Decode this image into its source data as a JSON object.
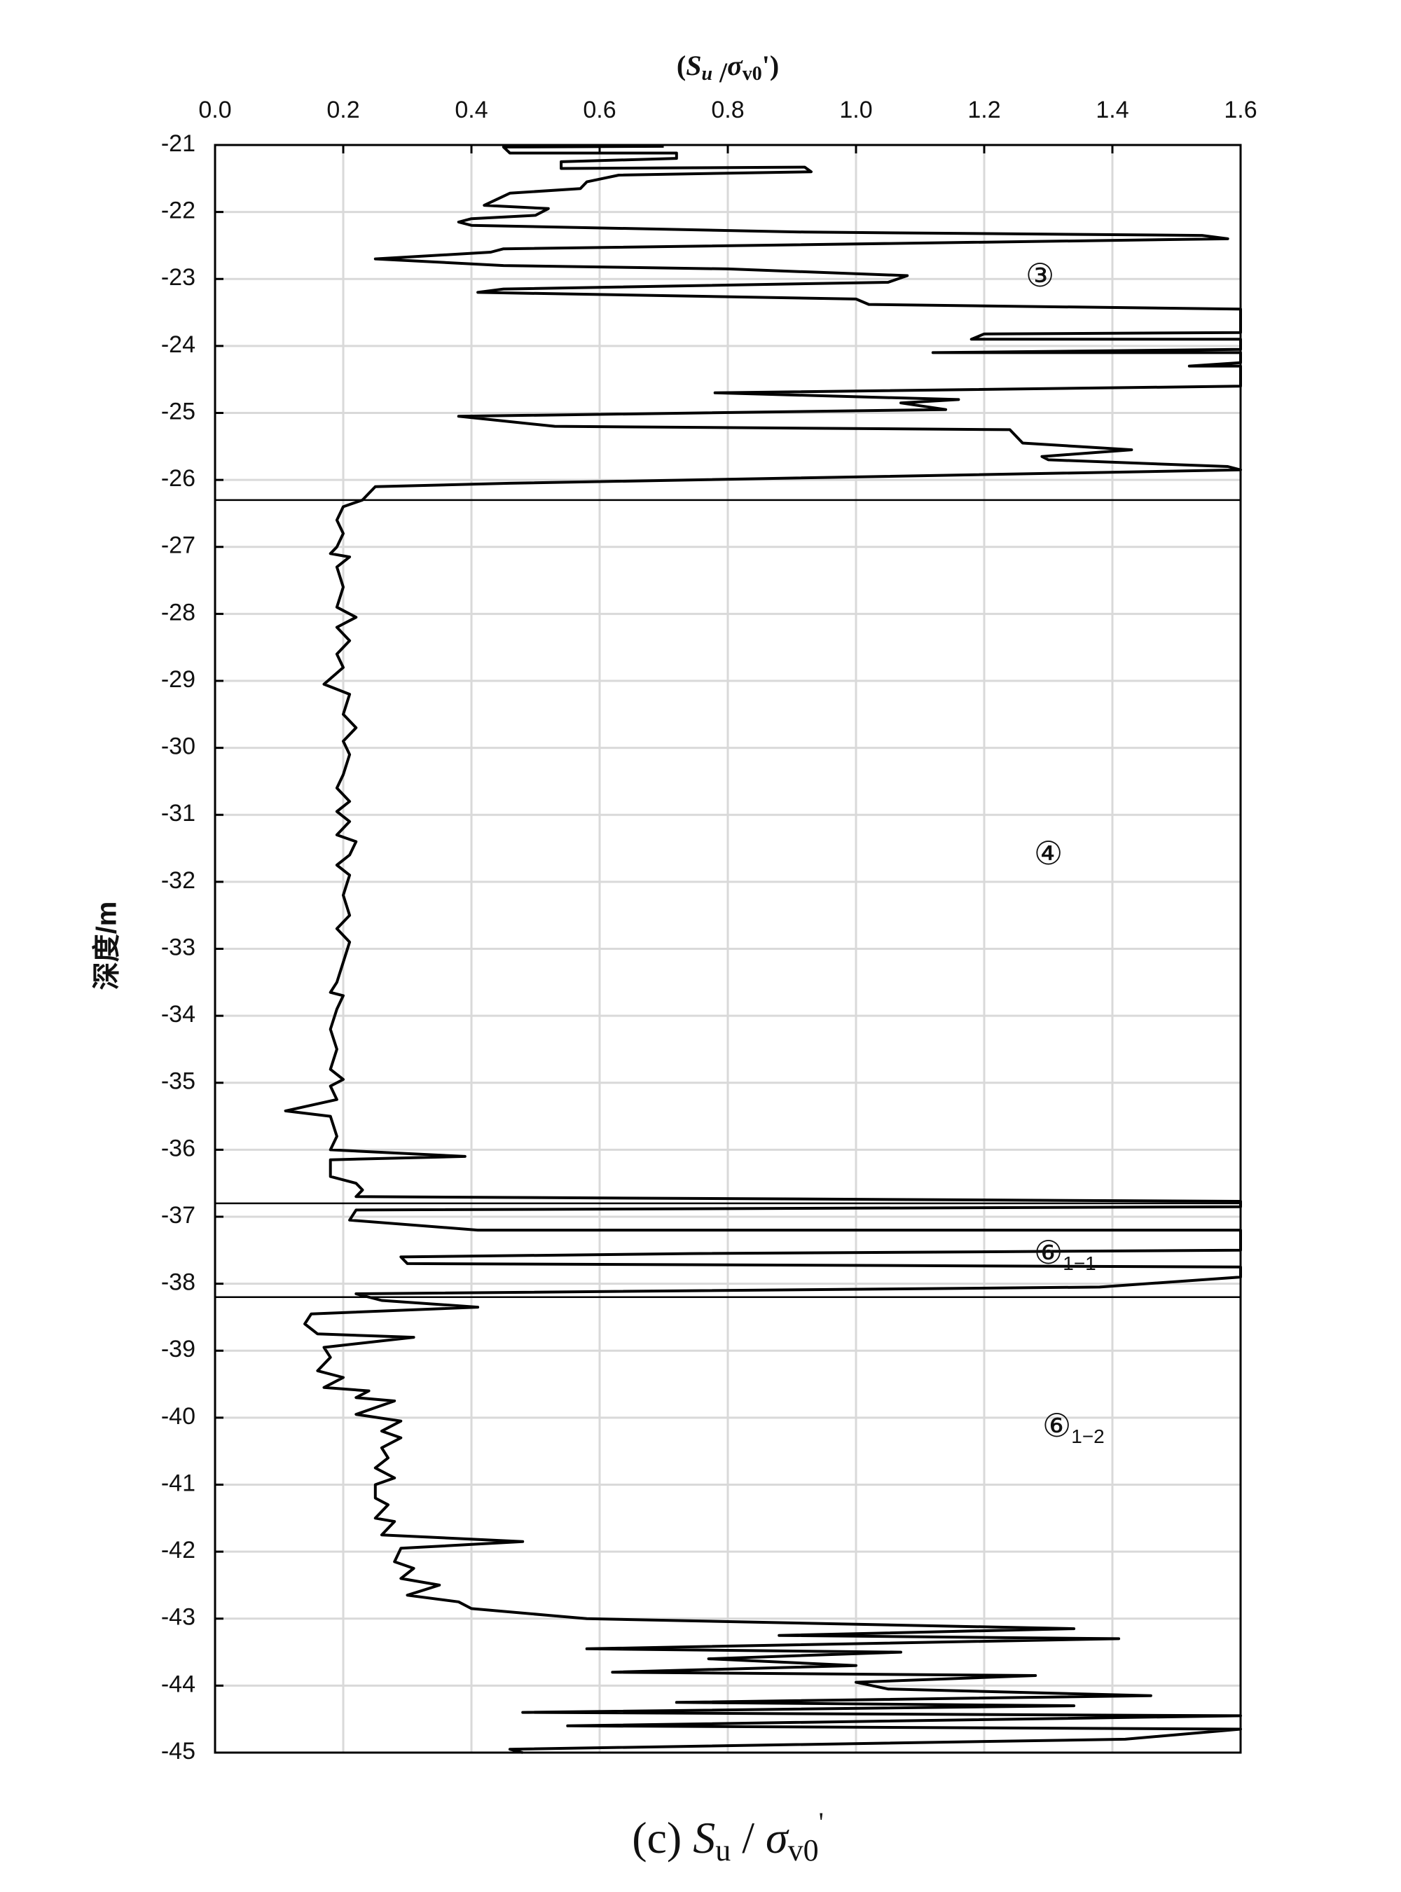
{
  "chart_data": {
    "type": "line",
    "xlabel_parts": [
      "(",
      "S",
      "u",
      " /",
      "σ",
      "v0",
      "')"
    ],
    "ylabel": "深度/m",
    "caption_parts": [
      "(c) ",
      "S",
      "u",
      " / ",
      "σ",
      "v0",
      "'"
    ],
    "xlim": [
      0,
      1.6
    ],
    "ylim": [
      -45,
      -21
    ],
    "xticks": [
      {
        "value": 0,
        "label": "0.0"
      },
      0.2,
      0.4,
      0.6,
      0.8,
      {
        "value": 1,
        "label": "1.0"
      },
      1.2,
      1.4,
      1.6
    ],
    "yticks": [
      -21,
      -22,
      -23,
      -24,
      -25,
      -26,
      -27,
      -28,
      -29,
      -30,
      -31,
      -32,
      -33,
      -34,
      -35,
      -36,
      -37,
      -38,
      -39,
      -40,
      -41,
      -42,
      -43,
      -44,
      -45
    ],
    "grid": true,
    "layer_boundaries": [
      -26.3,
      -36.8,
      -38.2
    ],
    "annotations": [
      {
        "text": "③"
      },
      {
        "text": "④"
      },
      {
        "text": "⑥",
        "sub": "1−1"
      },
      {
        "text": "⑥",
        "sub": "1−2"
      }
    ],
    "series": [
      {
        "color": "#000000",
        "x": [
          0.7,
          0.45,
          0.46,
          0.72,
          0.72,
          0.54,
          0.54,
          0.92,
          0.93,
          0.63,
          0.58,
          0.57,
          0.46,
          0.42,
          0.52,
          0.5,
          0.4,
          0.38,
          0.4,
          0.92,
          1.54,
          1.58,
          0.45,
          0.43,
          0.25,
          0.45,
          0.8,
          1.08,
          1.05,
          0.45,
          0.41,
          1.0,
          1.02,
          1.6,
          1.6,
          1.2,
          1.18,
          1.6,
          1.6,
          1.12,
          1.6,
          1.6,
          1.52,
          1.6,
          1.6,
          0.78,
          1.16,
          1.07,
          1.14,
          0.38,
          0.53,
          1.24,
          1.26,
          1.43,
          1.29,
          1.3,
          1.58,
          1.6,
          0.46,
          0.25,
          0.24,
          0.23,
          0.2,
          0.19,
          0.2,
          0.19,
          0.18,
          0.21,
          0.19,
          0.2,
          0.19,
          0.22,
          0.19,
          0.21,
          0.19,
          0.2,
          0.17,
          0.21,
          0.2,
          0.22,
          0.2,
          0.21,
          0.2,
          0.19,
          0.21,
          0.19,
          0.21,
          0.19,
          0.22,
          0.21,
          0.19,
          0.21,
          0.2,
          0.21,
          0.19,
          0.21,
          0.2,
          0.19,
          0.18,
          0.2,
          0.19,
          0.18,
          0.19,
          0.18,
          0.2,
          0.18,
          0.19,
          0.11,
          0.18,
          0.19,
          0.18,
          0.39,
          0.18,
          0.18,
          0.22,
          0.23,
          0.22,
          1.6,
          1.6,
          0.22,
          0.21,
          0.41,
          1.6,
          1.6,
          0.74,
          0.29,
          0.3,
          1.6,
          1.6,
          1.38,
          0.22,
          0.26,
          0.41,
          0.15,
          0.14,
          0.16,
          0.31,
          0.17,
          0.18,
          0.16,
          0.2,
          0.17,
          0.24,
          0.22,
          0.28,
          0.22,
          0.29,
          0.26,
          0.29,
          0.26,
          0.27,
          0.25,
          0.28,
          0.25,
          0.25,
          0.27,
          0.25,
          0.28,
          0.26,
          0.48,
          0.29,
          0.28,
          0.31,
          0.29,
          0.35,
          0.3,
          0.38,
          0.4,
          0.52,
          0.58,
          1.34,
          0.88,
          1.41,
          0.58,
          1.07,
          0.77,
          1.0,
          0.62,
          1.28,
          1.0,
          1.05,
          1.46,
          0.72,
          1.34,
          0.48,
          1.6,
          0.55,
          1.6,
          1.42,
          0.46,
          0.48
        ],
        "values": [
          -21.02,
          -21.03,
          -21.12,
          -21.12,
          -21.2,
          -21.25,
          -21.35,
          -21.33,
          -21.4,
          -21.45,
          -21.55,
          -21.65,
          -21.72,
          -21.9,
          -21.95,
          -22.05,
          -22.1,
          -22.15,
          -22.2,
          -22.3,
          -22.35,
          -22.4,
          -22.55,
          -22.6,
          -22.7,
          -22.8,
          -22.85,
          -22.95,
          -23.05,
          -23.15,
          -23.2,
          -23.3,
          -23.38,
          -23.45,
          -23.8,
          -23.82,
          -23.9,
          -23.9,
          -24.05,
          -24.1,
          -24.1,
          -24.25,
          -24.3,
          -24.3,
          -24.6,
          -24.7,
          -24.8,
          -24.85,
          -24.95,
          -25.05,
          -25.2,
          -25.25,
          -25.45,
          -25.55,
          -25.65,
          -25.7,
          -25.8,
          -25.85,
          -26.05,
          -26.1,
          -26.2,
          -26.3,
          -26.4,
          -26.6,
          -26.8,
          -27.0,
          -27.1,
          -27.15,
          -27.3,
          -27.6,
          -27.9,
          -28.05,
          -28.2,
          -28.4,
          -28.6,
          -28.8,
          -29.05,
          -29.2,
          -29.5,
          -29.7,
          -29.9,
          -30.1,
          -30.4,
          -30.6,
          -30.8,
          -30.95,
          -31.1,
          -31.3,
          -31.4,
          -31.6,
          -31.75,
          -31.9,
          -32.2,
          -32.5,
          -32.7,
          -32.9,
          -33.2,
          -33.5,
          -33.65,
          -33.7,
          -33.9,
          -34.2,
          -34.5,
          -34.8,
          -34.95,
          -35.05,
          -35.25,
          -35.42,
          -35.5,
          -35.8,
          -36.0,
          -36.1,
          -36.15,
          -36.4,
          -36.5,
          -36.6,
          -36.7,
          -36.77,
          -36.85,
          -36.9,
          -37.05,
          -37.2,
          -37.2,
          -37.5,
          -37.55,
          -37.6,
          -37.7,
          -37.75,
          -37.9,
          -38.05,
          -38.15,
          -38.25,
          -38.35,
          -38.45,
          -38.6,
          -38.75,
          -38.8,
          -38.95,
          -39.1,
          -39.3,
          -39.4,
          -39.55,
          -39.6,
          -39.7,
          -39.75,
          -39.95,
          -40.05,
          -40.2,
          -40.3,
          -40.45,
          -40.6,
          -40.75,
          -40.9,
          -41.0,
          -41.2,
          -41.3,
          -41.5,
          -41.55,
          -41.75,
          -41.85,
          -41.95,
          -42.15,
          -42.25,
          -42.4,
          -42.5,
          -42.65,
          -42.75,
          -42.85,
          -42.95,
          -43.0,
          -43.15,
          -43.25,
          -43.3,
          -43.45,
          -43.5,
          -43.6,
          -43.7,
          -43.8,
          -43.85,
          -43.95,
          -44.05,
          -44.15,
          -44.25,
          -44.3,
          -44.4,
          -44.45,
          -44.6,
          -44.65,
          -44.8,
          -44.95,
          -45.0
        ]
      }
    ]
  }
}
